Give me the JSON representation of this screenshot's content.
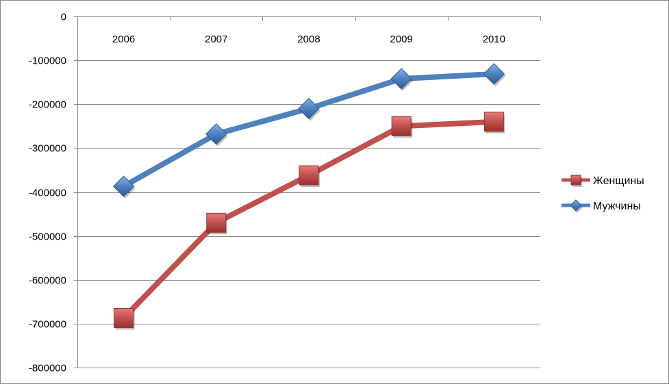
{
  "chart_data": {
    "type": "line",
    "categories": [
      "2006",
      "2007",
      "2008",
      "2009",
      "2010"
    ],
    "series": [
      {
        "name": "Женщины",
        "values": [
          -687000,
          -470000,
          -362000,
          -250000,
          -240000
        ],
        "color": "#c0504d",
        "marker": "square"
      },
      {
        "name": "Мужчины",
        "values": [
          -387000,
          -268000,
          -210000,
          -142000,
          -131000
        ],
        "color": "#4f81bd",
        "marker": "diamond"
      }
    ],
    "ylim": [
      -800000,
      0
    ],
    "yticks": [
      0,
      -100000,
      -200000,
      -300000,
      -400000,
      -500000,
      -600000,
      -700000,
      -800000
    ],
    "ytick_labels": [
      "0",
      "-100000",
      "-200000",
      "-300000",
      "-400000",
      "-500000",
      "-600000",
      "-700000",
      "-800000"
    ],
    "xaxis_position": "top",
    "grid": true,
    "legend_position": "right"
  }
}
